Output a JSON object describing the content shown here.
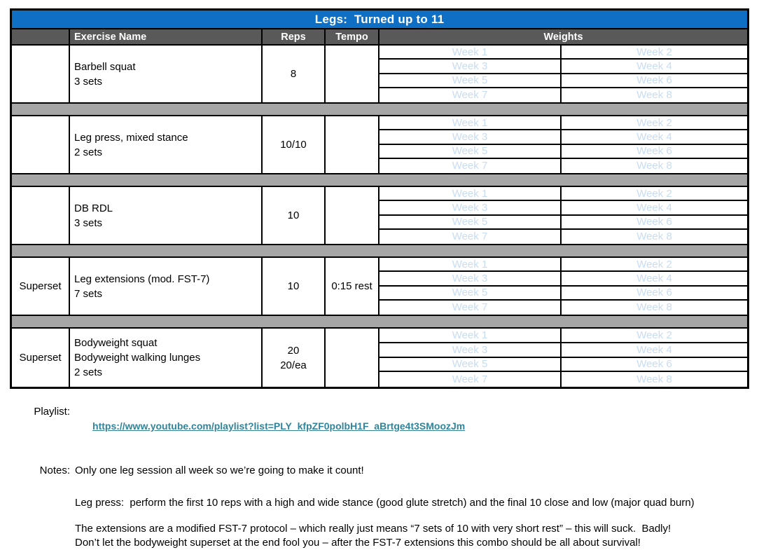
{
  "title": "Legs:  Turned up to 11",
  "columns": {
    "superset": "",
    "exercise": "Exercise Name",
    "reps": "Reps",
    "tempo": "Tempo",
    "weights": "Weights"
  },
  "weeks": [
    "Week 1",
    "Week 2",
    "Week 3",
    "Week 4",
    "Week 5",
    "Week 6",
    "Week 7",
    "Week 8"
  ],
  "exercises": [
    {
      "superset": "",
      "name_lines": [
        "Barbell squat",
        "3 sets"
      ],
      "reps_lines": [
        "8"
      ],
      "tempo": ""
    },
    {
      "superset": "",
      "name_lines": [
        "Leg press, mixed stance",
        "2 sets"
      ],
      "reps_lines": [
        "10/10"
      ],
      "tempo": ""
    },
    {
      "superset": "",
      "name_lines": [
        "DB RDL",
        "3 sets"
      ],
      "reps_lines": [
        "10"
      ],
      "tempo": ""
    },
    {
      "superset": "Superset",
      "name_lines": [
        "Leg extensions (mod. FST-7)",
        "7 sets"
      ],
      "reps_lines": [
        "10"
      ],
      "tempo": "0:15 rest"
    },
    {
      "superset": "Superset",
      "name_lines": [
        "Bodyweight squat",
        "Bodyweight walking lunges",
        "2 sets"
      ],
      "reps_lines": [
        "20",
        "20/ea"
      ],
      "tempo": ""
    }
  ],
  "footer": {
    "playlist_label": "Playlist:",
    "playlist_url": "https://www.youtube.com/playlist?list=PLY_kfpZF0polbH1F_aBrtge4t3SMoozJm",
    "notes_label": "Notes:",
    "note_1": "Only one leg session all week so we’re going to make it count!",
    "note_2": "Leg press:  perform the first 10 reps with a high and wide stance (good glute stretch) and the final 10 close and low (major quad burn)",
    "note_3a": "The extensions are a modified FST-7 protocol – which really just means “7 sets of 10 with very short rest” – this will suck.  Badly!",
    "note_3b": "Don’t let the bodyweight superset at the end fool you – after the FST-7 extensions this combo should be all about survival!"
  },
  "colors": {
    "title_bar": "#0e6fc5",
    "header_bar": "#595959",
    "separator": "#a6a6a6",
    "week_placeholder": "#c8dcf2",
    "link": "#31849b"
  }
}
